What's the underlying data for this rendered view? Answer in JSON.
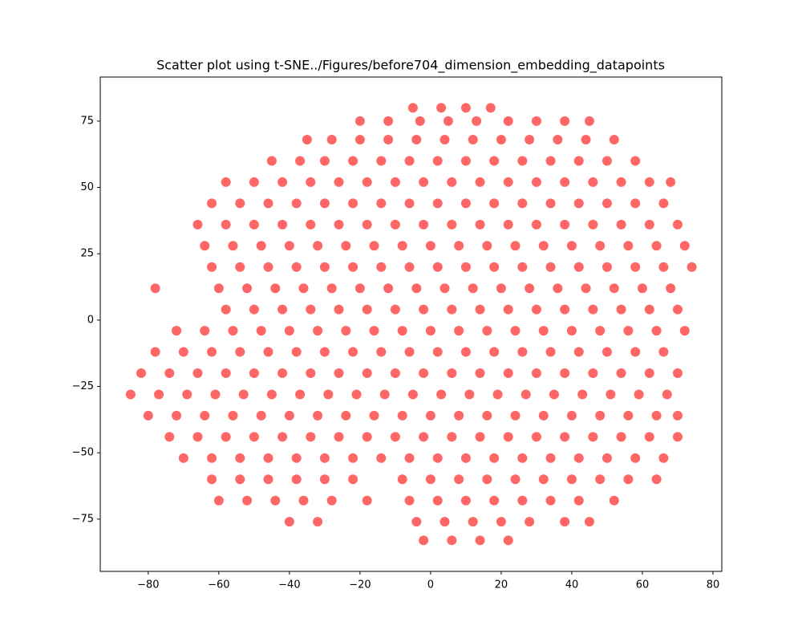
{
  "chart_data": {
    "type": "scatter",
    "title": "Scatter plot using t-SNE../Figures/before704_dimension_embedding_datapoints",
    "color": "#ff0000",
    "xlim": [
      -93.6,
      82.5
    ],
    "ylim": [
      -94.7,
      91.6
    ],
    "xticks": [
      {
        "value": -80,
        "label": "−80"
      },
      {
        "value": -60,
        "label": "−60"
      },
      {
        "value": -40,
        "label": "−40"
      },
      {
        "value": -20,
        "label": "−20"
      },
      0,
      20,
      40,
      60,
      80
    ],
    "yticks": [
      {
        "value": -75,
        "label": "−75"
      },
      {
        "value": -50,
        "label": "−50"
      },
      {
        "value": -25,
        "label": "−25"
      },
      0,
      25,
      50,
      75
    ],
    "x": [
      -5,
      3,
      10,
      17,
      -20,
      -12,
      -3,
      5,
      13,
      22,
      30,
      38,
      45,
      -35,
      -28,
      -20,
      -12,
      -4,
      4,
      12,
      20,
      28,
      36,
      44,
      52,
      -45,
      -37,
      -30,
      -22,
      -14,
      -6,
      2,
      10,
      18,
      26,
      34,
      42,
      50,
      58,
      -58,
      -50,
      -42,
      -34,
      -26,
      -18,
      -10,
      -2,
      6,
      14,
      22,
      30,
      38,
      46,
      54,
      62,
      68,
      -62,
      -54,
      -46,
      -38,
      -30,
      -22,
      -14,
      -6,
      2,
      10,
      18,
      26,
      34,
      42,
      50,
      58,
      66,
      -66,
      -58,
      -50,
      -42,
      -34,
      -26,
      -18,
      -10,
      -2,
      6,
      14,
      22,
      30,
      38,
      46,
      54,
      62,
      70,
      -64,
      -56,
      -48,
      -40,
      -32,
      -24,
      -16,
      -8,
      0,
      8,
      16,
      24,
      32,
      40,
      48,
      56,
      64,
      72,
      -62,
      -54,
      -46,
      -38,
      -30,
      -22,
      -14,
      -6,
      2,
      10,
      18,
      26,
      34,
      42,
      50,
      58,
      66,
      74,
      -78,
      -60,
      -52,
      -44,
      -36,
      -28,
      -20,
      -12,
      -4,
      4,
      12,
      20,
      28,
      36,
      44,
      52,
      60,
      68,
      -58,
      -50,
      -42,
      -34,
      -26,
      -18,
      -10,
      -2,
      6,
      14,
      22,
      30,
      38,
      46,
      54,
      62,
      70,
      -72,
      -64,
      -56,
      -48,
      -40,
      -32,
      -24,
      -16,
      -8,
      0,
      8,
      16,
      24,
      32,
      40,
      48,
      56,
      64,
      72,
      -78,
      -70,
      -62,
      -54,
      -46,
      -38,
      -30,
      -22,
      -14,
      -6,
      2,
      10,
      18,
      26,
      34,
      42,
      50,
      58,
      66,
      -82,
      -74,
      -66,
      -58,
      -50,
      -42,
      -34,
      -26,
      -18,
      -10,
      -2,
      6,
      14,
      22,
      30,
      38,
      46,
      54,
      62,
      70,
      -85,
      -77,
      -69,
      -61,
      -53,
      -45,
      -37,
      -29,
      -21,
      -13,
      -5,
      3,
      11,
      19,
      27,
      35,
      43,
      51,
      59,
      67,
      -80,
      -72,
      -64,
      -56,
      -48,
      -40,
      -32,
      -24,
      -16,
      -8,
      0,
      8,
      16,
      24,
      32,
      40,
      48,
      56,
      64,
      70,
      -74,
      -66,
      -58,
      -50,
      -42,
      -34,
      -26,
      -18,
      -10,
      -2,
      6,
      14,
      22,
      30,
      38,
      46,
      54,
      62,
      70,
      -70,
      -62,
      -54,
      -46,
      -38,
      -30,
      -22,
      -14,
      -6,
      2,
      10,
      18,
      26,
      34,
      42,
      50,
      58,
      66,
      -62,
      -54,
      -46,
      -38,
      -30,
      -22,
      -8,
      0,
      8,
      16,
      24,
      32,
      40,
      48,
      56,
      64,
      -60,
      -52,
      -44,
      -36,
      -28,
      -18,
      -6,
      2,
      10,
      18,
      26,
      34,
      42,
      52,
      -40,
      -32,
      -4,
      4,
      12,
      20,
      28,
      38,
      45,
      -2,
      6,
      14,
      22
    ],
    "y": [
      80,
      80,
      80,
      80,
      75,
      75,
      75,
      75,
      75,
      75,
      75,
      75,
      75,
      68,
      68,
      68,
      68,
      68,
      68,
      68,
      68,
      68,
      68,
      68,
      68,
      60,
      60,
      60,
      60,
      60,
      60,
      60,
      60,
      60,
      60,
      60,
      60,
      60,
      60,
      52,
      52,
      52,
      52,
      52,
      52,
      52,
      52,
      52,
      52,
      52,
      52,
      52,
      52,
      52,
      52,
      52,
      44,
      44,
      44,
      44,
      44,
      44,
      44,
      44,
      44,
      44,
      44,
      44,
      44,
      44,
      44,
      44,
      44,
      36,
      36,
      36,
      36,
      36,
      36,
      36,
      36,
      36,
      36,
      36,
      36,
      36,
      36,
      36,
      36,
      36,
      36,
      28,
      28,
      28,
      28,
      28,
      28,
      28,
      28,
      28,
      28,
      28,
      28,
      28,
      28,
      28,
      28,
      28,
      28,
      20,
      20,
      20,
      20,
      20,
      20,
      20,
      20,
      20,
      20,
      20,
      20,
      20,
      20,
      20,
      20,
      20,
      20,
      12,
      12,
      12,
      12,
      12,
      12,
      12,
      12,
      12,
      12,
      12,
      12,
      12,
      12,
      12,
      12,
      12,
      12,
      4,
      4,
      4,
      4,
      4,
      4,
      4,
      4,
      4,
      4,
      4,
      4,
      4,
      4,
      4,
      4,
      4,
      -4,
      -4,
      -4,
      -4,
      -4,
      -4,
      -4,
      -4,
      -4,
      -4,
      -4,
      -4,
      -4,
      -4,
      -4,
      -4,
      -4,
      -4,
      -4,
      -12,
      -12,
      -12,
      -12,
      -12,
      -12,
      -12,
      -12,
      -12,
      -12,
      -12,
      -12,
      -12,
      -12,
      -12,
      -12,
      -12,
      -12,
      -12,
      -20,
      -20,
      -20,
      -20,
      -20,
      -20,
      -20,
      -20,
      -20,
      -20,
      -20,
      -20,
      -20,
      -20,
      -20,
      -20,
      -20,
      -20,
      -20,
      -20,
      -28,
      -28,
      -28,
      -28,
      -28,
      -28,
      -28,
      -28,
      -28,
      -28,
      -28,
      -28,
      -28,
      -28,
      -28,
      -28,
      -28,
      -28,
      -28,
      -28,
      -36,
      -36,
      -36,
      -36,
      -36,
      -36,
      -36,
      -36,
      -36,
      -36,
      -36,
      -36,
      -36,
      -36,
      -36,
      -36,
      -36,
      -36,
      -36,
      -36,
      -44,
      -44,
      -44,
      -44,
      -44,
      -44,
      -44,
      -44,
      -44,
      -44,
      -44,
      -44,
      -44,
      -44,
      -44,
      -44,
      -44,
      -44,
      -44,
      -52,
      -52,
      -52,
      -52,
      -52,
      -52,
      -52,
      -52,
      -52,
      -52,
      -52,
      -52,
      -52,
      -52,
      -52,
      -52,
      -52,
      -52,
      -60,
      -60,
      -60,
      -60,
      -60,
      -60,
      -60,
      -60,
      -60,
      -60,
      -60,
      -60,
      -60,
      -60,
      -60,
      -60,
      -68,
      -68,
      -68,
      -68,
      -68,
      -68,
      -68,
      -68,
      -68,
      -68,
      -68,
      -68,
      -68,
      -68,
      -76,
      -76,
      -76,
      -76,
      -76,
      -76,
      -76,
      -76,
      -76,
      -83,
      -83,
      -83,
      -83
    ]
  }
}
